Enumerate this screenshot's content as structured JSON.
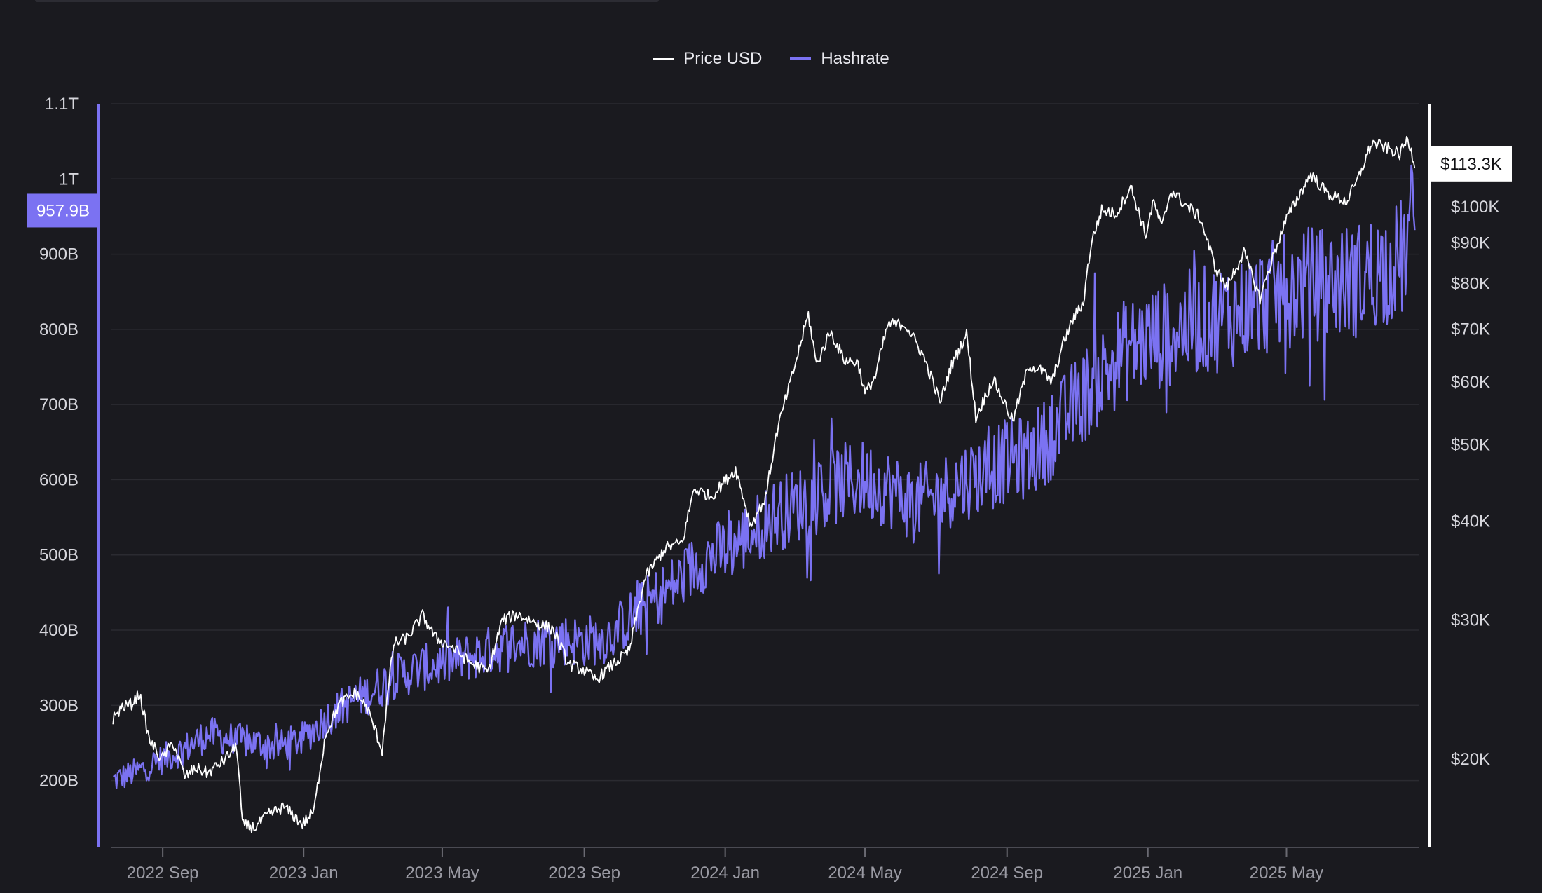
{
  "legend": {
    "price_label": "Price USD",
    "hashrate_label": "Hashrate"
  },
  "colors": {
    "background": "#1a1a1f",
    "price": "#ffffff",
    "hashrate": "#7b72f2",
    "grid": "#2b2b31",
    "tick_text": "#d6d6dc",
    "date_text": "#9a9aa3"
  },
  "chart_data": {
    "type": "line",
    "x_type": "date",
    "grid": true,
    "legend_position": "top-center",
    "x_ticks": [
      {
        "date": "2022-09-01",
        "label": "2022 Sep"
      },
      {
        "date": "2023-01-01",
        "label": "2023 Jan"
      },
      {
        "date": "2023-05-01",
        "label": "2023 May"
      },
      {
        "date": "2023-09-01",
        "label": "2023 Sep"
      },
      {
        "date": "2024-01-01",
        "label": "2024 Jan"
      },
      {
        "date": "2024-05-01",
        "label": "2024 May"
      },
      {
        "date": "2024-09-01",
        "label": "2024 Sep"
      },
      {
        "date": "2025-01-01",
        "label": "2025 Jan"
      },
      {
        "date": "2025-05-01",
        "label": "2025 May"
      }
    ],
    "left_axis": {
      "scale": "linear",
      "series": "Hashrate",
      "range": [
        112000000000,
        1100000000000
      ],
      "ticks": [
        {
          "value": 200000000000,
          "label": "200B"
        },
        {
          "value": 300000000000,
          "label": "300B"
        },
        {
          "value": 400000000000,
          "label": "400B"
        },
        {
          "value": 500000000000,
          "label": "500B"
        },
        {
          "value": 600000000000,
          "label": "600B"
        },
        {
          "value": 700000000000,
          "label": "700B"
        },
        {
          "value": 800000000000,
          "label": "800B"
        },
        {
          "value": 900000000000,
          "label": "900B"
        },
        {
          "value": 1000000000000,
          "label": "1T"
        },
        {
          "value": 1100000000000,
          "label": "1.1T"
        }
      ],
      "last_value_label": "957.9B",
      "last_value": 957900000000
    },
    "right_axis": {
      "scale": "log",
      "series": "Price USD",
      "range": [
        15500,
        135000
      ],
      "ticks": [
        {
          "value": 20000,
          "label": "$20K"
        },
        {
          "value": 30000,
          "label": "$30K"
        },
        {
          "value": 40000,
          "label": "$40K"
        },
        {
          "value": 50000,
          "label": "$50K"
        },
        {
          "value": 60000,
          "label": "$60K"
        },
        {
          "value": 70000,
          "label": "$70K"
        },
        {
          "value": 80000,
          "label": "$80K"
        },
        {
          "value": 90000,
          "label": "$90K"
        },
        {
          "value": 100000,
          "label": "$100K"
        }
      ],
      "last_value_label": "$113.3K",
      "last_value": 113300
    },
    "series": [
      {
        "name": "Price USD",
        "axis": "right",
        "points": [
          [
            "2022-07-20",
            22500
          ],
          [
            "2022-07-28",
            23300
          ],
          [
            "2022-08-05",
            23500
          ],
          [
            "2022-08-12",
            24200
          ],
          [
            "2022-08-20",
            21200
          ],
          [
            "2022-08-31",
            20000
          ],
          [
            "2022-09-10",
            21000
          ],
          [
            "2022-09-20",
            19000
          ],
          [
            "2022-09-30",
            19500
          ],
          [
            "2022-10-10",
            19200
          ],
          [
            "2022-10-25",
            20000
          ],
          [
            "2022-11-04",
            20800
          ],
          [
            "2022-11-09",
            16500
          ],
          [
            "2022-11-20",
            16400
          ],
          [
            "2022-12-01",
            17000
          ],
          [
            "2022-12-15",
            17400
          ],
          [
            "2022-12-31",
            16550
          ],
          [
            "2023-01-10",
            17200
          ],
          [
            "2023-01-20",
            21500
          ],
          [
            "2023-02-01",
            23500
          ],
          [
            "2023-02-15",
            24300
          ],
          [
            "2023-02-25",
            23200
          ],
          [
            "2023-03-10",
            20500
          ],
          [
            "2023-03-20",
            28000
          ],
          [
            "2023-04-01",
            28500
          ],
          [
            "2023-04-14",
            30400
          ],
          [
            "2023-04-25",
            28500
          ],
          [
            "2023-05-10",
            27700
          ],
          [
            "2023-05-25",
            26500
          ],
          [
            "2023-06-10",
            25800
          ],
          [
            "2023-06-22",
            30000
          ],
          [
            "2023-07-05",
            30500
          ],
          [
            "2023-07-20",
            29800
          ],
          [
            "2023-08-05",
            29200
          ],
          [
            "2023-08-18",
            26400
          ],
          [
            "2023-09-01",
            25900
          ],
          [
            "2023-09-11",
            25200
          ],
          [
            "2023-09-25",
            26300
          ],
          [
            "2023-10-10",
            27400
          ],
          [
            "2023-10-24",
            34000
          ],
          [
            "2023-11-10",
            37000
          ],
          [
            "2023-11-25",
            37600
          ],
          [
            "2023-12-05",
            44000
          ],
          [
            "2023-12-20",
            43000
          ],
          [
            "2024-01-10",
            46500
          ],
          [
            "2024-01-23",
            39500
          ],
          [
            "2024-02-05",
            42800
          ],
          [
            "2024-02-15",
            52000
          ],
          [
            "2024-02-28",
            61000
          ],
          [
            "2024-03-05",
            66000
          ],
          [
            "2024-03-13",
            73000
          ],
          [
            "2024-03-20",
            63000
          ],
          [
            "2024-04-01",
            69500
          ],
          [
            "2024-04-13",
            64000
          ],
          [
            "2024-04-25",
            63500
          ],
          [
            "2024-05-01",
            58000
          ],
          [
            "2024-05-10",
            61000
          ],
          [
            "2024-05-21",
            71000
          ],
          [
            "2024-06-05",
            71000
          ],
          [
            "2024-06-20",
            65000
          ],
          [
            "2024-07-05",
            56500
          ],
          [
            "2024-07-15",
            63000
          ],
          [
            "2024-07-28",
            69000
          ],
          [
            "2024-08-05",
            54000
          ],
          [
            "2024-08-20",
            60500
          ],
          [
            "2024-09-06",
            53500
          ],
          [
            "2024-09-20",
            63000
          ],
          [
            "2024-10-01",
            62000
          ],
          [
            "2024-10-10",
            60000
          ],
          [
            "2024-10-21",
            68000
          ],
          [
            "2024-10-29",
            72500
          ],
          [
            "2024-11-06",
            75500
          ],
          [
            "2024-11-13",
            90000
          ],
          [
            "2024-11-22",
            99000
          ],
          [
            "2024-12-05",
            98000
          ],
          [
            "2024-12-17",
            106000
          ],
          [
            "2024-12-30",
            92000
          ],
          [
            "2025-01-06",
            101500
          ],
          [
            "2025-01-13",
            94000
          ],
          [
            "2025-01-21",
            105000
          ],
          [
            "2025-02-01",
            101000
          ],
          [
            "2025-02-15",
            97000
          ],
          [
            "2025-02-28",
            84000
          ],
          [
            "2025-03-10",
            79000
          ],
          [
            "2025-03-25",
            87500
          ],
          [
            "2025-04-08",
            76500
          ],
          [
            "2025-04-20",
            87000
          ],
          [
            "2025-05-01",
            96500
          ],
          [
            "2025-05-12",
            103500
          ],
          [
            "2025-05-22",
            110000
          ],
          [
            "2025-06-05",
            104000
          ],
          [
            "2025-06-22",
            101500
          ],
          [
            "2025-07-01",
            107500
          ],
          [
            "2025-07-14",
            120500
          ],
          [
            "2025-07-28",
            118500
          ],
          [
            "2025-08-07",
            116500
          ],
          [
            "2025-08-14",
            122000
          ],
          [
            "2025-08-20",
            113300
          ]
        ]
      },
      {
        "name": "Hashrate",
        "axis": "left",
        "points": [
          [
            "2022-07-20",
            200000000000
          ],
          [
            "2022-08-10",
            212000000000
          ],
          [
            "2022-08-31",
            228000000000
          ],
          [
            "2022-09-20",
            242000000000
          ],
          [
            "2022-10-10",
            262000000000
          ],
          [
            "2022-10-30",
            255000000000
          ],
          [
            "2022-11-20",
            250000000000
          ],
          [
            "2022-12-10",
            245000000000
          ],
          [
            "2022-12-31",
            255000000000
          ],
          [
            "2023-01-20",
            282000000000
          ],
          [
            "2023-02-10",
            305000000000
          ],
          [
            "2023-03-01",
            318000000000
          ],
          [
            "2023-03-20",
            338000000000
          ],
          [
            "2023-04-10",
            348000000000
          ],
          [
            "2023-04-30",
            355000000000
          ],
          [
            "2023-05-20",
            362000000000
          ],
          [
            "2023-06-10",
            372000000000
          ],
          [
            "2023-06-30",
            382000000000
          ],
          [
            "2023-07-20",
            385000000000
          ],
          [
            "2023-08-10",
            388000000000
          ],
          [
            "2023-08-31",
            385000000000
          ],
          [
            "2023-09-20",
            390000000000
          ],
          [
            "2023-10-10",
            415000000000
          ],
          [
            "2023-10-30",
            440000000000
          ],
          [
            "2023-11-20",
            462000000000
          ],
          [
            "2023-12-10",
            492000000000
          ],
          [
            "2023-12-31",
            505000000000
          ],
          [
            "2024-01-20",
            525000000000
          ],
          [
            "2024-02-10",
            550000000000
          ],
          [
            "2024-03-01",
            565000000000
          ],
          [
            "2024-03-20",
            578000000000
          ],
          [
            "2024-04-10",
            595000000000
          ],
          [
            "2024-04-30",
            600000000000
          ],
          [
            "2024-05-20",
            590000000000
          ],
          [
            "2024-06-10",
            570000000000
          ],
          [
            "2024-06-30",
            575000000000
          ],
          [
            "2024-07-20",
            595000000000
          ],
          [
            "2024-08-10",
            608000000000
          ],
          [
            "2024-08-31",
            625000000000
          ],
          [
            "2024-09-20",
            630000000000
          ],
          [
            "2024-10-10",
            660000000000
          ],
          [
            "2024-10-30",
            700000000000
          ],
          [
            "2024-11-20",
            735000000000
          ],
          [
            "2024-12-10",
            770000000000
          ],
          [
            "2024-12-31",
            785000000000
          ],
          [
            "2025-01-20",
            795000000000
          ],
          [
            "2025-02-10",
            810000000000
          ],
          [
            "2025-03-01",
            815000000000
          ],
          [
            "2025-03-20",
            825000000000
          ],
          [
            "2025-04-10",
            838000000000
          ],
          [
            "2025-04-30",
            850000000000
          ],
          [
            "2025-05-20",
            860000000000
          ],
          [
            "2025-06-10",
            862000000000
          ],
          [
            "2025-06-30",
            865000000000
          ],
          [
            "2025-07-20",
            880000000000
          ],
          [
            "2025-08-10",
            895000000000
          ],
          [
            "2025-08-20",
            957900000000
          ]
        ]
      }
    ]
  }
}
